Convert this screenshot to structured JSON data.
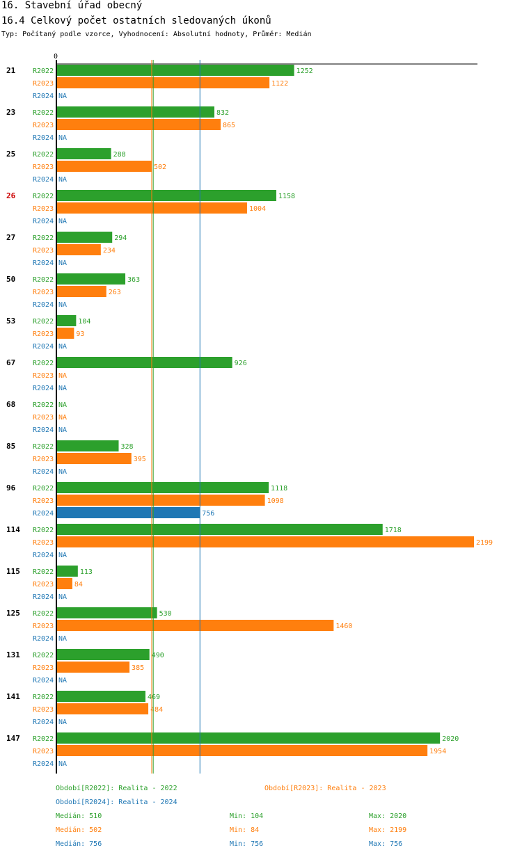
{
  "header": {
    "title": "16. Stavební úřad obecný",
    "subtitle": "16.4 Celkový počet ostatních sledovaných úkonů",
    "meta": "Typ: Počítaný podle vzorce, Vyhodnocení: Absolutní hodnoty, Průměr: Medián"
  },
  "chart_data": {
    "type": "bar",
    "orientation": "horizontal",
    "axis_zero_label": "0",
    "colors": {
      "R2022": "#2ca02c",
      "R2023": "#ff7f0e",
      "R2024": "#1f77b4",
      "highlight": "#cc0000"
    },
    "highlighted_category": "26",
    "na_label": "NA",
    "categories": [
      "21",
      "23",
      "25",
      "26",
      "27",
      "50",
      "53",
      "67",
      "68",
      "85",
      "96",
      "114",
      "115",
      "125",
      "131",
      "141",
      "147"
    ],
    "series": [
      {
        "name": "R2022",
        "values": [
          1252,
          832,
          288,
          1158,
          294,
          363,
          104,
          926,
          null,
          328,
          1118,
          1718,
          113,
          530,
          490,
          469,
          2020
        ]
      },
      {
        "name": "R2023",
        "values": [
          1122,
          865,
          502,
          1004,
          234,
          263,
          93,
          null,
          null,
          395,
          1098,
          2199,
          84,
          1460,
          385,
          484,
          1954
        ]
      },
      {
        "name": "R2024",
        "values": [
          null,
          null,
          null,
          null,
          null,
          null,
          null,
          null,
          null,
          null,
          756,
          null,
          null,
          null,
          null,
          null,
          null
        ]
      }
    ],
    "medians": {
      "R2022": 510,
      "R2023": 502,
      "R2024": 756
    }
  },
  "legend": {
    "r2022": "Období[R2022]: Realita - 2022",
    "r2023": "Období[R2023]: Realita - 2023",
    "r2024": "Období[R2024]: Realita - 2024"
  },
  "stats": {
    "r2022": {
      "median": "Medián: 510",
      "min": "Min: 104",
      "max": "Max: 2020"
    },
    "r2023": {
      "median": "Medián: 502",
      "min": "Min: 84",
      "max": "Max: 2199"
    },
    "r2024": {
      "median": "Medián: 756",
      "min": "Min: 756",
      "max": "Max: 756"
    }
  }
}
